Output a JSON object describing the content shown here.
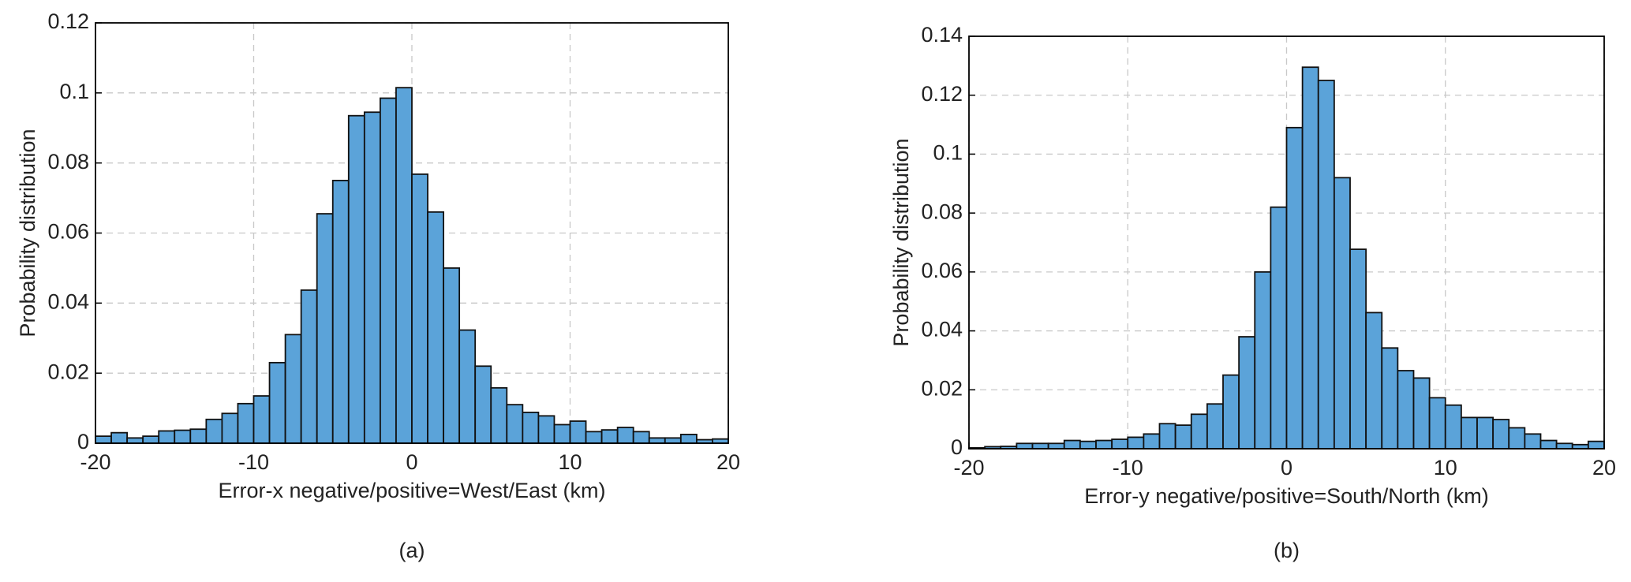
{
  "chart_data": [
    {
      "type": "histogram",
      "caption": "(a)",
      "xlabel": "Error-x negative/positive=West/East (km)",
      "ylabel": "Probability distribution",
      "color": "#5ba3d9",
      "grid": true,
      "bins": [
        -20,
        -19,
        -18,
        -17,
        -16,
        -15,
        -14,
        -13,
        -12,
        -11,
        -10,
        -9,
        -8,
        -7,
        -6,
        -5,
        -4,
        -3,
        -2,
        -1,
        0,
        1,
        2,
        3,
        4,
        5,
        6,
        7,
        8,
        9,
        10,
        11,
        12,
        13,
        14,
        15,
        16,
        17,
        18,
        19,
        20
      ],
      "counts": [
        0.002,
        0.003,
        0.0015,
        0.002,
        0.0035,
        0.0037,
        0.004,
        0.0068,
        0.0085,
        0.0113,
        0.0135,
        0.023,
        0.031,
        0.0437,
        0.0655,
        0.075,
        0.0935,
        0.0945,
        0.0985,
        0.1015,
        0.0768,
        0.066,
        0.05,
        0.0323,
        0.022,
        0.0158,
        0.011,
        0.0088,
        0.0078,
        0.0053,
        0.0063,
        0.0033,
        0.0038,
        0.0045,
        0.0033,
        0.0015,
        0.0015,
        0.0025,
        0.001,
        0.0012
      ],
      "xlim": [
        -20,
        20
      ],
      "xticks": [
        -20,
        -10,
        0,
        10,
        20
      ],
      "ylim": [
        0,
        0.12
      ],
      "yticks": [
        0,
        0.02,
        0.04,
        0.06,
        0.08,
        0.1,
        0.12
      ]
    },
    {
      "type": "histogram",
      "caption": "(b)",
      "xlabel": "Error-y negative/positive=South/North (km)",
      "ylabel": "Probability distribution",
      "color": "#5ba3d9",
      "grid": true,
      "bins": [
        -20,
        -19,
        -18,
        -17,
        -16,
        -15,
        -14,
        -13,
        -12,
        -11,
        -10,
        -9,
        -8,
        -7,
        -6,
        -5,
        -4,
        -3,
        -2,
        -1,
        0,
        1,
        2,
        3,
        4,
        5,
        6,
        7,
        8,
        9,
        10,
        11,
        12,
        13,
        14,
        15,
        16,
        17,
        18,
        19,
        20
      ],
      "counts": [
        0.0003,
        0.0007,
        0.0008,
        0.0018,
        0.0018,
        0.0018,
        0.0028,
        0.0025,
        0.0028,
        0.0032,
        0.0039,
        0.005,
        0.0085,
        0.008,
        0.0117,
        0.0152,
        0.025,
        0.038,
        0.06,
        0.082,
        0.109,
        0.1295,
        0.125,
        0.092,
        0.0677,
        0.0462,
        0.0342,
        0.0265,
        0.024,
        0.0173,
        0.0148,
        0.0106,
        0.0106,
        0.0099,
        0.0071,
        0.005,
        0.0028,
        0.0018,
        0.0014,
        0.0025
      ],
      "xlim": [
        -20,
        20
      ],
      "xticks": [
        -20,
        -10,
        0,
        10,
        20
      ],
      "ylim": [
        0,
        0.14
      ],
      "yticks": [
        0,
        0.02,
        0.04,
        0.06,
        0.08,
        0.1,
        0.12,
        0.14
      ]
    }
  ]
}
